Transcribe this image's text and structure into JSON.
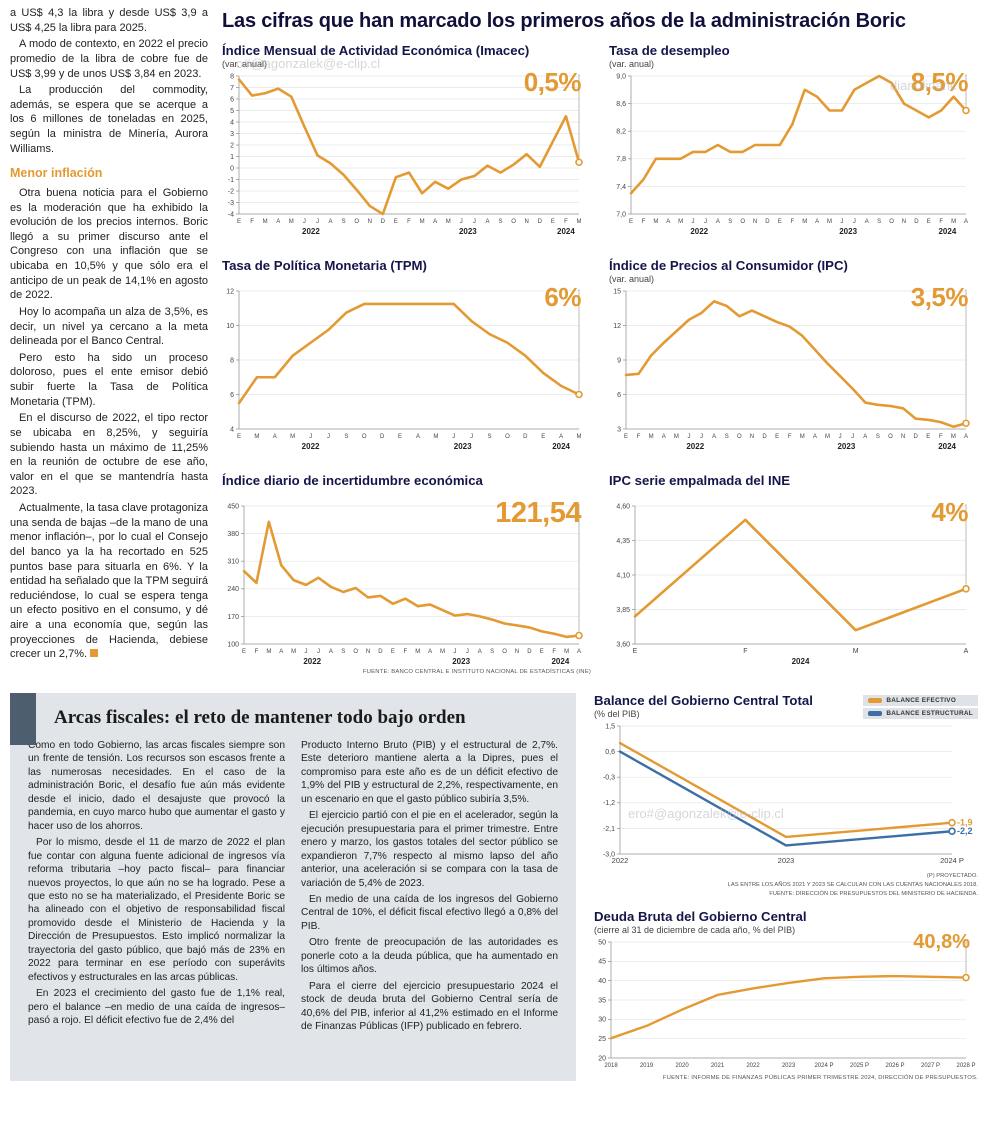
{
  "colors": {
    "accent_orange": "#E39A33",
    "structural_blue": "#3D6EA5",
    "title_navy": "#15154a",
    "section_bg": "#e1e5e9",
    "section_bar": "#4d5e6f"
  },
  "watermarks": {
    "top_left": "o#@agonzalek@e-clip.cl",
    "top_right": "diariofinanc",
    "bottom": "ero#@agonzalek@e-clip.cl"
  },
  "main_title": "Las cifras que han marcado los primeros años de la administración Boric",
  "left_column": {
    "paragraphs": [
      "a US$ 4,3 la libra y desde US$ 3,9 a US$ 4,25 la libra para 2025.",
      "A modo de contexto, en 2022 el precio promedio de la libra de cobre fue de US$ 3,99 y de unos US$ 3,84 en 2023.",
      "La producción del commodity, además, se espera que se acerque a los 6 millones de toneladas en 2025, según la ministra de Minería, Aurora Williams."
    ],
    "heading": "Menor inflación",
    "paragraphs2": [
      "Otra buena noticia para el Gobierno es la moderación que ha exhibido la evolución de los precios internos. Boric llegó a su primer discurso ante el Congreso con una inflación que se ubicaba en 10,5% y que sólo era el anticipo de un peak de 14,1% en agosto de 2022.",
      "Hoy lo acompaña un alza de 3,5%, es decir, un nivel ya cercano a la meta delineada por el Banco Central.",
      "Pero esto ha sido un proceso doloroso, pues el ente emisor debió subir fuerte la Tasa de Política Monetaria (TPM).",
      "En el discurso de 2022, el tipo rector se ubicaba en 8,25%, y seguiría subiendo hasta un máximo de 11,25% en la reunión de octubre de ese año, valor en el que se mantendría hasta 2023.",
      "Actualmente, la tasa clave protagoniza una senda de bajas –de la mano de una menor inflación–, por lo cual el Consejo del banco ya la ha recortado en 525 puntos base para situarla en 6%. Y la entidad ha señalado que la TPM seguirá reduciéndose, lo cual se espera tenga un efecto positivo en el consumo, y dé aire a una economía que, según las proyecciones de Hacienda, debiese crecer un 2,7%."
    ]
  },
  "chart_data": [
    {
      "id": "imacec",
      "type": "line",
      "title": "Índice Mensual de Actividad Económica (Imacec)",
      "subtitle": "(var. anual)",
      "big_value": "0,5%",
      "ylim": [
        -4,
        8
      ],
      "y_ticks": [
        -4,
        -3,
        -2,
        -1,
        0,
        1,
        2,
        3,
        4,
        5,
        6,
        7,
        8
      ],
      "y_tick_labels": [
        "-4",
        "-3",
        "-2",
        "-1",
        "0",
        "1",
        "2",
        "3",
        "4",
        "5",
        "6",
        "7",
        "8"
      ],
      "x_labels": [
        "E",
        "F",
        "M",
        "A",
        "M",
        "J",
        "J",
        "A",
        "S",
        "O",
        "N",
        "D",
        "E",
        "F",
        "M",
        "A",
        "M",
        "J",
        "J",
        "A",
        "S",
        "O",
        "N",
        "D",
        "E",
        "F",
        "M"
      ],
      "years": [
        {
          "label": "2022",
          "index": 5.5
        },
        {
          "label": "2023",
          "index": 17.5
        },
        {
          "label": "2024",
          "index": 25
        }
      ],
      "end_rule": true,
      "series": [
        {
          "name": "Imacec var. anual",
          "color": "#E39A33",
          "end_marker": true,
          "values": [
            7.7,
            6.3,
            6.5,
            6.9,
            6.2,
            3.6,
            1.1,
            0.4,
            -0.6,
            -1.9,
            -3.3,
            -4.0,
            -0.8,
            -0.4,
            -2.2,
            -1.2,
            -1.8,
            -1.0,
            -0.7,
            0.2,
            -0.4,
            0.3,
            1.2,
            0.1,
            2.3,
            4.5,
            0.5
          ]
        }
      ]
    },
    {
      "id": "desempleo",
      "type": "line",
      "title": "Tasa de desempleo",
      "subtitle": "(var. anual)",
      "big_value": "8,5%",
      "ylim": [
        7.0,
        9.0
      ],
      "y_ticks": [
        7.0,
        7.4,
        7.8,
        8.2,
        8.6,
        9.0
      ],
      "y_tick_labels": [
        "7,0",
        "7,4",
        "7,8",
        "8,2",
        "8,6",
        "9,0"
      ],
      "x_labels": [
        "E",
        "F",
        "M",
        "A",
        "M",
        "J",
        "J",
        "A",
        "S",
        "O",
        "N",
        "D",
        "E",
        "F",
        "M",
        "A",
        "M",
        "J",
        "J",
        "A",
        "S",
        "O",
        "N",
        "D",
        "E",
        "F",
        "M",
        "A"
      ],
      "years": [
        {
          "label": "2022",
          "index": 5.5
        },
        {
          "label": "2023",
          "index": 17.5
        },
        {
          "label": "2024",
          "index": 25.5
        }
      ],
      "end_rule": true,
      "series": [
        {
          "name": "Tasa de desempleo",
          "color": "#E39A33",
          "end_marker": true,
          "values": [
            7.3,
            7.5,
            7.8,
            7.8,
            7.8,
            7.9,
            7.9,
            8.0,
            7.9,
            7.9,
            8.0,
            8.0,
            8.0,
            8.3,
            8.8,
            8.7,
            8.5,
            8.5,
            8.8,
            8.9,
            9.0,
            8.9,
            8.6,
            8.5,
            8.4,
            8.5,
            8.7,
            8.5
          ]
        }
      ]
    },
    {
      "id": "tpm",
      "type": "line",
      "title": "Tasa de Política Monetaria (TPM)",
      "subtitle": "",
      "big_value": "6%",
      "ylim": [
        4,
        12
      ],
      "y_ticks": [
        4,
        6,
        8,
        10,
        12
      ],
      "y_tick_labels": [
        "4",
        "6",
        "8",
        "10",
        "12"
      ],
      "x_labels": [
        "E",
        "M",
        "A",
        "M",
        "J",
        "J",
        "S",
        "O",
        "D",
        "E",
        "A",
        "M",
        "J",
        "J",
        "S",
        "O",
        "D",
        "E",
        "A",
        "M"
      ],
      "years": [
        {
          "label": "2022",
          "index": 4
        },
        {
          "label": "2023",
          "index": 12.5
        },
        {
          "label": "2024",
          "index": 18
        }
      ],
      "end_rule": true,
      "series": [
        {
          "name": "TPM",
          "color": "#E39A33",
          "end_marker": true,
          "values": [
            5.5,
            7.0,
            7.0,
            8.25,
            9.0,
            9.75,
            10.75,
            11.25,
            11.25,
            11.25,
            11.25,
            11.25,
            11.25,
            10.25,
            9.5,
            9.0,
            8.25,
            7.25,
            6.5,
            6.0
          ]
        }
      ]
    },
    {
      "id": "ipc",
      "type": "line",
      "title": "Índice de Precios al Consumidor (IPC)",
      "subtitle": "(var. anual)",
      "big_value": "3,5%",
      "ylim": [
        3,
        15
      ],
      "y_ticks": [
        3,
        6,
        9,
        12,
        15
      ],
      "y_tick_labels": [
        "3",
        "6",
        "9",
        "12",
        "15"
      ],
      "x_labels": [
        "E",
        "F",
        "M",
        "A",
        "M",
        "J",
        "J",
        "A",
        "S",
        "O",
        "N",
        "D",
        "E",
        "F",
        "M",
        "A",
        "M",
        "J",
        "J",
        "A",
        "S",
        "O",
        "N",
        "D",
        "E",
        "F",
        "M",
        "A"
      ],
      "years": [
        {
          "label": "2022",
          "index": 5.5
        },
        {
          "label": "2023",
          "index": 17.5
        },
        {
          "label": "2024",
          "index": 25.5
        }
      ],
      "end_rule": true,
      "series": [
        {
          "name": "IPC var. anual",
          "color": "#E39A33",
          "end_marker": true,
          "values": [
            7.7,
            7.8,
            9.4,
            10.5,
            11.5,
            12.5,
            13.1,
            14.1,
            13.7,
            12.8,
            13.3,
            12.8,
            12.3,
            11.9,
            11.1,
            9.9,
            8.7,
            7.6,
            6.5,
            5.3,
            5.1,
            5.0,
            4.8,
            3.9,
            3.8,
            3.6,
            3.2,
            3.5
          ]
        }
      ]
    },
    {
      "id": "incertidumbre",
      "type": "line",
      "title": "Índice diario de incertidumbre económica",
      "subtitle": "",
      "big_value": "121,54",
      "ylim": [
        100,
        450
      ],
      "y_ticks": [
        100,
        170,
        240,
        310,
        380,
        450
      ],
      "y_tick_labels": [
        "100",
        "170",
        "240",
        "310",
        "380",
        "450"
      ],
      "x_labels": [
        "E",
        "F",
        "M",
        "A",
        "M",
        "J",
        "J",
        "A",
        "S",
        "O",
        "N",
        "D",
        "E",
        "F",
        "M",
        "A",
        "M",
        "J",
        "J",
        "A",
        "S",
        "O",
        "N",
        "D",
        "E",
        "F",
        "M",
        "A"
      ],
      "years": [
        {
          "label": "2022",
          "index": 5.5
        },
        {
          "label": "2023",
          "index": 17.5
        },
        {
          "label": "2024",
          "index": 25.5
        }
      ],
      "end_rule": true,
      "source": "FUENTE: BANCO CENTRAL E INSTITUTO NACIONAL DE ESTADÍSTICAS (INE)",
      "series": [
        {
          "name": "Incertidumbre económica",
          "color": "#E39A33",
          "end_marker": true,
          "values": [
            285,
            255,
            410,
            300,
            262,
            250,
            268,
            245,
            232,
            242,
            218,
            222,
            202,
            215,
            196,
            200,
            186,
            172,
            176,
            170,
            162,
            152,
            147,
            142,
            132,
            126,
            118,
            121.54
          ]
        }
      ]
    },
    {
      "id": "ipc_ine",
      "type": "line",
      "title": "IPC serie empalmada del INE",
      "subtitle": "",
      "big_value": "4%",
      "ylim": [
        3.6,
        4.6
      ],
      "y_ticks": [
        3.6,
        3.85,
        4.1,
        4.35,
        4.6
      ],
      "y_tick_labels": [
        "3,60",
        "3,85",
        "4,10",
        "4,35",
        "4,60"
      ],
      "x_labels": [
        "E",
        "F",
        "M",
        "A"
      ],
      "x_font": 7,
      "years": [
        {
          "label": "2024",
          "index": 1.5
        }
      ],
      "end_rule": true,
      "series": [
        {
          "name": "IPC serie empalmada",
          "color": "#E39A33",
          "end_marker": true,
          "values": [
            3.8,
            4.5,
            3.7,
            4.0
          ]
        }
      ]
    },
    {
      "id": "balance",
      "type": "line",
      "title": "Balance del Gobierno Central Total",
      "subtitle": "(% del PIB)",
      "ylim": [
        -3.0,
        1.5
      ],
      "y_ticks": [
        -3.0,
        -2.1,
        -1.2,
        -0.3,
        0.6,
        1.5
      ],
      "y_tick_labels": [
        "-3,0",
        "-2,1",
        "-1,2",
        "-0,3",
        "0,6",
        "1,5"
      ],
      "x_labels": [
        "2022",
        "2023",
        "2024 P"
      ],
      "x_font": 7.5,
      "line_width": 2.4,
      "legend": [
        {
          "label": "BALANCE EFECTIVO",
          "color": "#E39A33"
        },
        {
          "label": "BALANCE ESTRUCTURAL",
          "color": "#3D6EA5"
        }
      ],
      "notes": [
        "(P) PROYECTADO.",
        "LAS ENTRE LOS AÑOS 2021 Y 2023 SE CALCULAN  CON LAS CUENTAS NACIONALES 2018.",
        "FUENTE: DIRECCIÓN DE PRESUPUESTOS DEL MINISTERIO DE HACIENDA."
      ],
      "series": [
        {
          "name": "Balance efectivo",
          "color": "#E39A33",
          "end_marker": true,
          "end_label": "-1,9",
          "values": [
            0.9,
            -2.4,
            -1.9
          ]
        },
        {
          "name": "Balance estructural",
          "color": "#3D6EA5",
          "end_marker": true,
          "end_label": "-2,2",
          "values": [
            0.6,
            -2.7,
            -2.2
          ]
        }
      ]
    },
    {
      "id": "deuda",
      "type": "line",
      "title": "Deuda Bruta del Gobierno Central",
      "subtitle": "(cierre al 31 de diciembre de cada año, % del PIB)",
      "big_value": "40,8%",
      "ylim": [
        20,
        50
      ],
      "y_ticks": [
        20,
        25,
        30,
        35,
        40,
        45,
        50
      ],
      "y_tick_labels": [
        "20",
        "25",
        "30",
        "35",
        "40",
        "45",
        "50"
      ],
      "x_labels": [
        "2018",
        "2019",
        "2020",
        "2021",
        "2022",
        "2023",
        "2024 P",
        "2025 P",
        "2026 P",
        "2027 P",
        "2028 P"
      ],
      "x_font": 6,
      "line_width": 2.4,
      "end_rule": true,
      "source": "FUENTE: INFORME DE FINANZAS PÚBLICAS PRIMER TRIMESTRE 2024, DIRECCIÓN DE PRESUPUESTOS.",
      "series": [
        {
          "name": "Deuda bruta % PIB",
          "color": "#E39A33",
          "end_marker": true,
          "values": [
            25.1,
            28.3,
            32.5,
            36.3,
            38.0,
            39.4,
            40.6,
            41.0,
            41.2,
            41.0,
            40.8
          ]
        }
      ]
    }
  ],
  "bottom_section": {
    "heading": "Arcas fiscales: el reto de mantener todo bajo orden",
    "col1": [
      "Como en todo Gobierno, las arcas fiscales siempre son un frente de tensión. Los recursos son escasos frente a las numerosas necesidades. En el caso de la administración Boric, el desafío fue aún más evidente desde el inicio, dado el desajuste que provocó la pandemia, en cuyo marco hubo que aumentar el gasto y hacer uso de los ahorros.",
      "Por lo mismo, desde el 11 de marzo de 2022 el plan fue contar con alguna fuente adicional de ingresos vía reforma tributaria –hoy pacto fiscal– para financiar nuevos proyectos, lo que aún no se ha logrado. Pese a que esto no se ha materializado, el Presidente Boric se ha alineado con el objetivo de responsabilidad fiscal promovido desde el Ministerio de Hacienda y la Dirección de Presupuestos. Esto implicó normalizar la trayectoria del gasto público, que bajó más de 23% en 2022 para terminar en ese período con superávits efectivos y estructurales en las arcas públicas.",
      "En 2023 el crecimiento del gasto fue de 1,1% real, pero el balance –en medio de una caída de ingresos– pasó a rojo. El déficit efectivo fue de 2,4% del"
    ],
    "col2": [
      "Producto Interno Bruto (PIB) y el estructural de 2,7%. Este deterioro mantiene alerta a la Dipres, pues el compromiso para este año es de un déficit efectivo de 1,9% del PIB y estructural de 2,2%, respectivamente, en un escenario en que el gasto público subiría 3,5%.",
      "El ejercicio partió con el pie en el acelerador, según la ejecución presupuestaria para el primer trimestre. Entre enero y marzo, los gastos totales del sector público se expandieron 7,7% respecto al mismo lapso del año anterior, una aceleración si se compara con la tasa de variación de 5,4% de 2023.",
      "En medio de una caída de los ingresos del Gobierno Central de 10%, el déficit fiscal efectivo llegó a 0,8% del PIB.",
      "Otro frente de preocupación de las autoridades es ponerle coto a la deuda pública, que ha aumentado en los últimos años.",
      "Para el cierre del ejercicio presupuestario 2024 el stock de deuda bruta del Gobierno Central sería de 40,6% del PIB, inferior al 41,2% estimado en el Informe de Finanzas Públicas (IFP) publicado en febrero."
    ]
  }
}
